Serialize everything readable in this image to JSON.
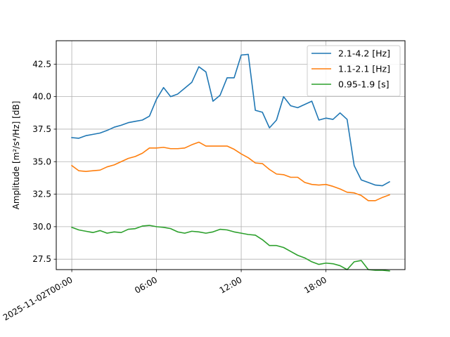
{
  "chart_data": {
    "type": "line",
    "title": "",
    "xlabel": "",
    "ylabel": "Amplitude [m²/s⁴/Hz] [dB]",
    "x_start": "2025-11-02T00:00",
    "x_step_minutes": 30,
    "x_ticks": [
      {
        "label": "2025-11-02T00:00",
        "hour": 0
      },
      {
        "label": "06:00",
        "hour": 6
      },
      {
        "label": "12:00",
        "hour": 12
      },
      {
        "label": "18:00",
        "hour": 18
      }
    ],
    "xlim_hours": [
      -1.1,
      23.6
    ],
    "ylim": [
      26.7,
      44.3
    ],
    "y_ticks": [
      27.5,
      30.0,
      32.5,
      35.0,
      37.5,
      40.0,
      42.5
    ],
    "y_tick_labels": [
      "27.5",
      "30.0",
      "32.5",
      "35.0",
      "37.5",
      "40.0",
      "42.5"
    ],
    "grid": true,
    "legend_position": "top-right",
    "series": [
      {
        "name": "2.1-4.2 [Hz]",
        "color": "#1f77b4",
        "values": [
          36.85,
          36.8,
          37.0,
          37.1,
          37.2,
          37.4,
          37.65,
          37.8,
          38.0,
          38.1,
          38.2,
          38.5,
          39.8,
          40.7,
          40.0,
          40.2,
          40.65,
          41.1,
          42.3,
          41.9,
          39.65,
          40.1,
          41.45,
          41.45,
          43.2,
          43.25,
          38.95,
          38.8,
          37.6,
          38.2,
          40.0,
          39.3,
          39.15,
          39.4,
          39.65,
          38.2,
          38.35,
          38.25,
          38.75,
          38.25,
          34.7,
          33.6,
          33.4,
          33.2,
          33.15,
          33.45
        ]
      },
      {
        "name": "1.1-2.1 [Hz]",
        "color": "#ff7f0e",
        "values": [
          34.7,
          34.3,
          34.25,
          34.3,
          34.35,
          34.6,
          34.75,
          35.0,
          35.25,
          35.4,
          35.65,
          36.05,
          36.05,
          36.1,
          36.0,
          36.0,
          36.05,
          36.3,
          36.5,
          36.2,
          36.2,
          36.2,
          36.2,
          35.95,
          35.6,
          35.3,
          34.9,
          34.85,
          34.4,
          34.05,
          34.0,
          33.8,
          33.8,
          33.4,
          33.25,
          33.2,
          33.25,
          33.1,
          32.9,
          32.65,
          32.6,
          32.4,
          32.0,
          32.0,
          32.25,
          32.45
        ]
      },
      {
        "name": "0.95-1.9 [s]",
        "color": "#2ca02c",
        "values": [
          29.95,
          29.75,
          29.65,
          29.55,
          29.7,
          29.5,
          29.6,
          29.55,
          29.8,
          29.85,
          30.05,
          30.1,
          30.0,
          29.95,
          29.85,
          29.6,
          29.5,
          29.65,
          29.6,
          29.5,
          29.6,
          29.8,
          29.75,
          29.6,
          29.5,
          29.4,
          29.35,
          29.0,
          28.55,
          28.55,
          28.4,
          28.1,
          27.8,
          27.6,
          27.3,
          27.1,
          27.2,
          27.15,
          27.0,
          26.7,
          27.3,
          27.4,
          26.7,
          26.65,
          26.65,
          26.6
        ]
      }
    ]
  }
}
